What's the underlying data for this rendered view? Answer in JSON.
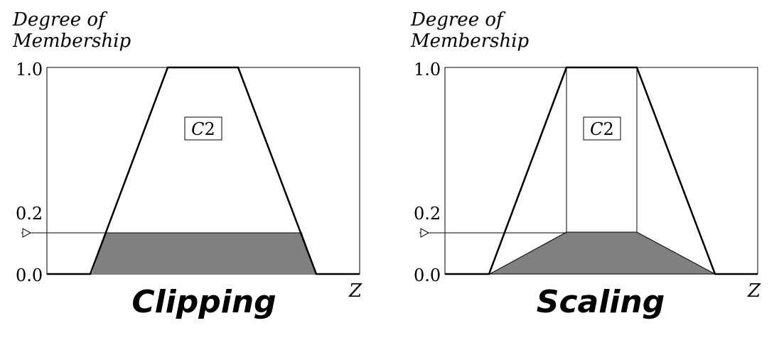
{
  "panels": [
    {
      "caption": "Clipping",
      "ylabel_line1": "Degree of",
      "ylabel_line2": "Membership",
      "y_ticks": [
        "1.0",
        "0.2",
        "0.0"
      ],
      "x_label": "Z",
      "set_label_letter": "C",
      "set_label_number": "2",
      "method": "clipping"
    },
    {
      "caption": "Scaling",
      "ylabel_line1": "Degree of",
      "ylabel_line2": "Membership",
      "y_ticks": [
        "1.0",
        "0.2",
        "0.0"
      ],
      "x_label": "Z",
      "set_label_letter": "C",
      "set_label_number": "2",
      "method": "scaling"
    }
  ],
  "colors": {
    "shade": "#808080",
    "line": "#000000",
    "background": "#ffffff"
  },
  "icons": {
    "level_marker": "triangle-arrow-icon"
  }
}
